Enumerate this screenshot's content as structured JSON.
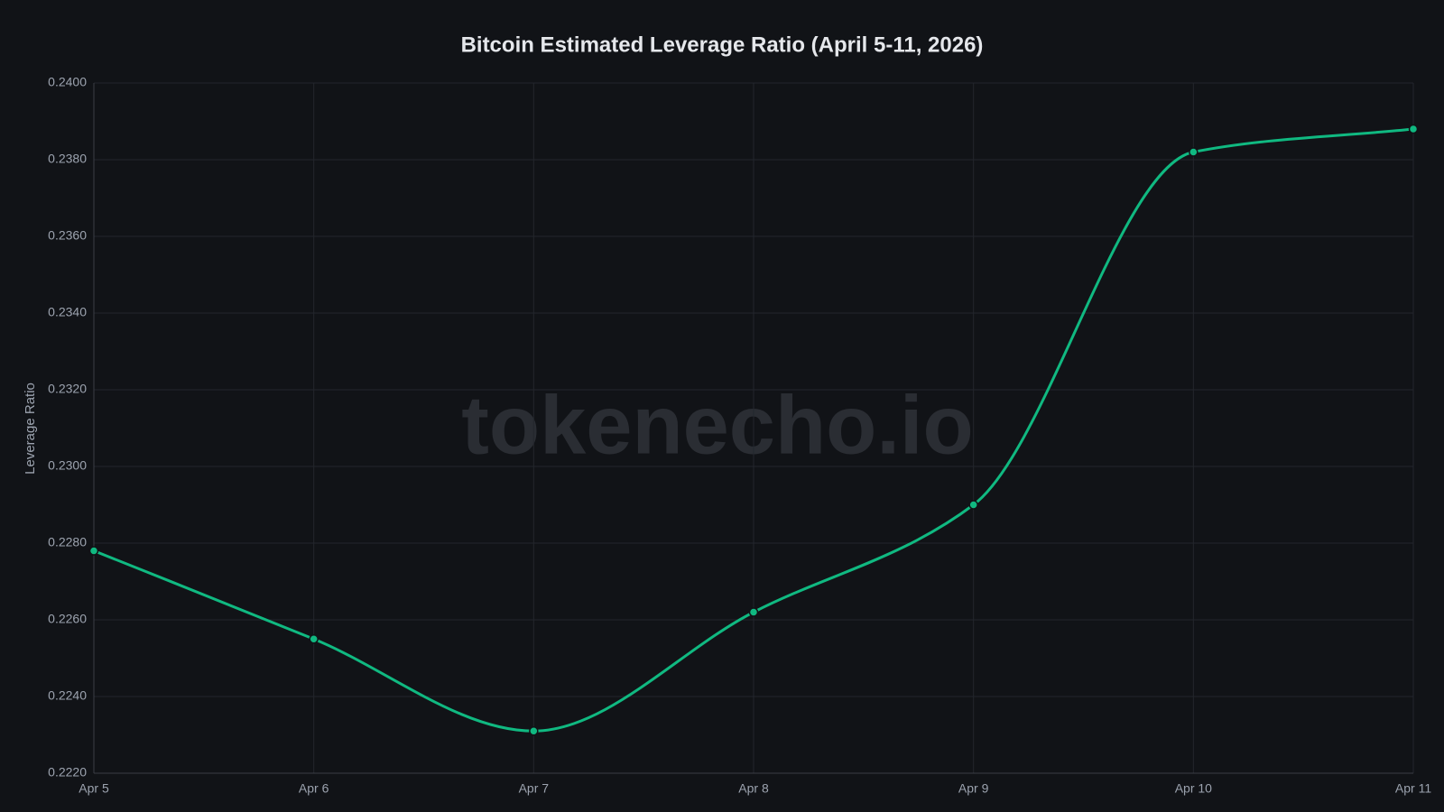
{
  "chart_data": {
    "type": "line",
    "title": "Bitcoin Estimated Leverage Ratio (April 5-11, 2026)",
    "y_label": "Leverage Ratio",
    "watermark": "tokenecho.io",
    "categories": [
      "Apr 5",
      "Apr 6",
      "Apr 7",
      "Apr 8",
      "Apr 9",
      "Apr 10",
      "Apr 11"
    ],
    "series": [
      {
        "name": "Leverage Ratio",
        "color": "#10b981",
        "values": [
          0.2278,
          0.2255,
          0.2231,
          0.2262,
          0.229,
          0.2382,
          0.2388
        ]
      }
    ],
    "ylim": [
      0.222,
      0.24
    ],
    "yticks": [
      {
        "value": 0.222,
        "label": "0.2220"
      },
      {
        "value": 0.224,
        "label": "0.2240"
      },
      {
        "value": 0.226,
        "label": "0.2260"
      },
      {
        "value": 0.228,
        "label": "0.2280"
      },
      {
        "value": 0.23,
        "label": "0.2300"
      },
      {
        "value": 0.232,
        "label": "0.2320"
      },
      {
        "value": 0.234,
        "label": "0.2340"
      },
      {
        "value": 0.236,
        "label": "0.2360"
      },
      {
        "value": 0.238,
        "label": "0.2380"
      },
      {
        "value": 0.24,
        "label": "0.2400"
      }
    ],
    "grid": true
  }
}
